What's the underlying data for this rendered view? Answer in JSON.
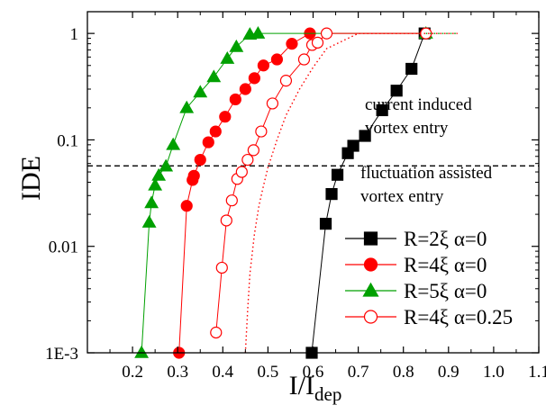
{
  "chart_data": {
    "type": "scatter",
    "xlabel": "I/I",
    "xlabel_sub": "dep",
    "ylabel": "IDE",
    "xlim": [
      0.1,
      1.1
    ],
    "ylim": [
      0.001,
      1.6
    ],
    "yscale": "log",
    "xticks": [
      0.2,
      0.3,
      0.4,
      0.5,
      0.6,
      0.7,
      0.8,
      0.9,
      1.0,
      1.1
    ],
    "xtick_labels": [
      "0.2",
      "0.3",
      "0.4",
      "0.5",
      "0.6",
      "0.7",
      "0.8",
      "0.9",
      "1.0",
      "1.1"
    ],
    "yticks": [
      0.001,
      0.01,
      0.1,
      1
    ],
    "ytick_labels": [
      "1E-3",
      "0.01",
      "0.1",
      "1"
    ],
    "hline": 0.057,
    "annotations": [
      {
        "lines": [
          "current induced",
          "vortex entry"
        ]
      },
      {
        "lines": [
          "fluctuation assisted",
          "vortex entry"
        ]
      }
    ],
    "series": [
      {
        "name": "R=2ξ α=0",
        "color": "#000000",
        "marker": "square",
        "filled": true,
        "x": [
          0.597,
          0.628,
          0.641,
          0.654,
          0.677,
          0.689,
          0.715,
          0.753,
          0.785,
          0.818,
          0.847
        ],
        "y": [
          0.001,
          0.0163,
          0.031,
          0.047,
          0.075,
          0.088,
          0.109,
          0.19,
          0.29,
          0.465,
          1.0
        ]
      },
      {
        "name": "R=4ξ α=0",
        "color": "#ff0000",
        "marker": "circle",
        "filled": true,
        "x": [
          0.303,
          0.32,
          0.333,
          0.336,
          0.35,
          0.368,
          0.384,
          0.405,
          0.428,
          0.45,
          0.47,
          0.49,
          0.52,
          0.553,
          0.593
        ],
        "y": [
          0.001,
          0.024,
          0.042,
          0.046,
          0.065,
          0.095,
          0.12,
          0.165,
          0.24,
          0.3,
          0.38,
          0.5,
          0.57,
          0.8,
          1.0
        ]
      },
      {
        "name": "R=5ξ α=0",
        "color": "#00a000",
        "marker": "triangle",
        "filled": true,
        "x": [
          0.22,
          0.237,
          0.242,
          0.25,
          0.258,
          0.274,
          0.29,
          0.32,
          0.35,
          0.38,
          0.41,
          0.43,
          0.46,
          0.478,
          0.85
        ],
        "y": [
          0.001,
          0.0168,
          0.0256,
          0.0375,
          0.0463,
          0.0565,
          0.09,
          0.2,
          0.28,
          0.39,
          0.58,
          0.75,
          0.98,
          1.0,
          1.0
        ]
      },
      {
        "name": "R=4ξ α=0.25",
        "color": "#ff0000",
        "marker": "circle",
        "filled": false,
        "x": [
          0.385,
          0.398,
          0.408,
          0.42,
          0.432,
          0.442,
          0.455,
          0.468,
          0.485,
          0.51,
          0.54,
          0.58,
          0.598,
          0.61,
          0.63,
          0.85
        ],
        "y": [
          0.00155,
          0.0063,
          0.0175,
          0.027,
          0.043,
          0.05,
          0.065,
          0.08,
          0.12,
          0.22,
          0.36,
          0.57,
          0.78,
          0.82,
          1.0,
          1.0
        ]
      },
      {
        "color": "#ff0000",
        "marker": "none",
        "filled": false,
        "dash": "dotted",
        "x": [
          0.45,
          0.455,
          0.46,
          0.47,
          0.48,
          0.49,
          0.5,
          0.52,
          0.54,
          0.57,
          0.6,
          0.63,
          0.7,
          0.8,
          0.92
        ],
        "y": [
          0.001,
          0.0025,
          0.0055,
          0.013,
          0.024,
          0.037,
          0.055,
          0.1,
          0.17,
          0.3,
          0.48,
          0.72,
          1.0,
          1.0,
          1.0
        ]
      },
      {
        "color": "#00a000",
        "marker": "none",
        "filled": false,
        "dash": "dotted",
        "x": [
          0.85,
          0.88,
          0.92
        ],
        "y": [
          1.0,
          1.0,
          1.0
        ]
      }
    ]
  }
}
